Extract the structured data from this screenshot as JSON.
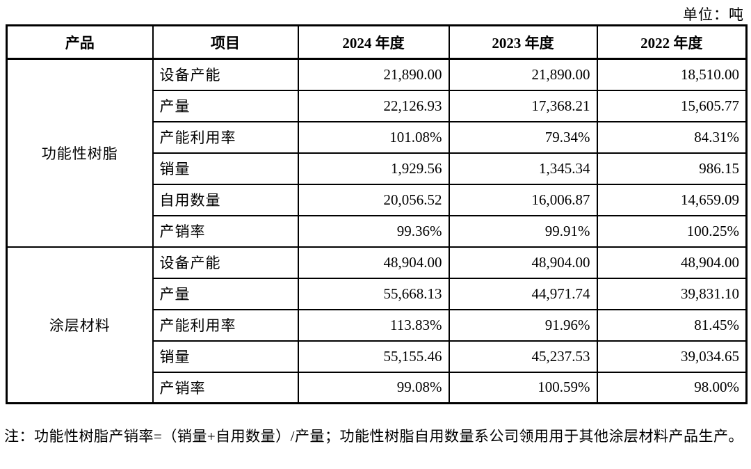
{
  "unit_label": "单位：吨",
  "table": {
    "headers": [
      "产品",
      "项目",
      "2024 年度",
      "2023 年度",
      "2022 年度"
    ],
    "groups": [
      {
        "product": "功能性树脂",
        "rows": [
          {
            "item": "设备产能",
            "y2024": "21,890.00",
            "y2023": "21,890.00",
            "y2022": "18,510.00"
          },
          {
            "item": "产量",
            "y2024": "22,126.93",
            "y2023": "17,368.21",
            "y2022": "15,605.77"
          },
          {
            "item": "产能利用率",
            "y2024": "101.08%",
            "y2023": "79.34%",
            "y2022": "84.31%"
          },
          {
            "item": "销量",
            "y2024": "1,929.56",
            "y2023": "1,345.34",
            "y2022": "986.15"
          },
          {
            "item": "自用数量",
            "y2024": "20,056.52",
            "y2023": "16,006.87",
            "y2022": "14,659.09"
          },
          {
            "item": "产销率",
            "y2024": "99.36%",
            "y2023": "99.91%",
            "y2022": "100.25%"
          }
        ]
      },
      {
        "product": "涂层材料",
        "rows": [
          {
            "item": "设备产能",
            "y2024": "48,904.00",
            "y2023": "48,904.00",
            "y2022": "48,904.00"
          },
          {
            "item": "产量",
            "y2024": "55,668.13",
            "y2023": "44,971.74",
            "y2022": "39,831.10"
          },
          {
            "item": "产能利用率",
            "y2024": "113.83%",
            "y2023": "91.96%",
            "y2022": "81.45%"
          },
          {
            "item": "销量",
            "y2024": "55,155.46",
            "y2023": "45,237.53",
            "y2022": "39,034.65"
          },
          {
            "item": "产销率",
            "y2024": "99.08%",
            "y2023": "100.59%",
            "y2022": "98.00%"
          }
        ]
      }
    ]
  },
  "note": "注：功能性树脂产销率=（销量+自用数量）/产量；功能性树脂自用数量系公司领用用于其他涂层材料产品生产。"
}
